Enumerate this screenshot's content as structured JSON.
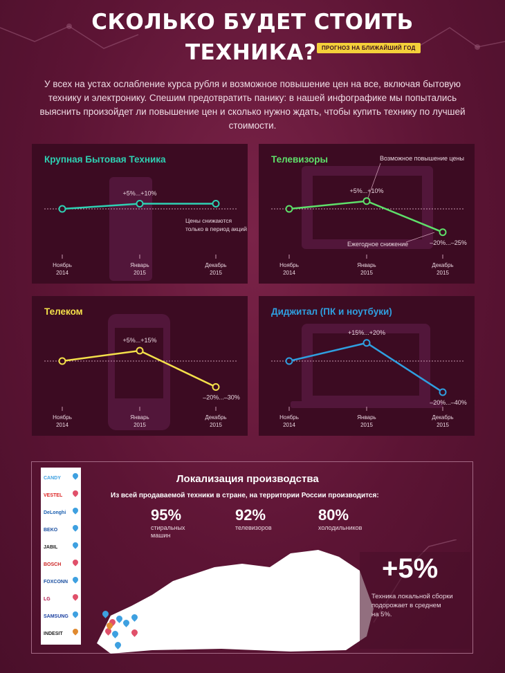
{
  "header": {
    "title_line1": "СКОЛЬКО БУДЕТ СТОИТЬ",
    "title_line2": "ТЕХНИКА?",
    "badge": "ПРОГНОЗ НА БЛИЖАЙШИЙ ГОД",
    "intro": "У всех на устах ослабление курса рубля и возможное повышение цен на все, включая бытовую технику и электронику. Спешим предотвратить панику: в нашей инфографике мы попытались выяснить произойдет ли повышение цен и сколько нужно ждать, чтобы купить технику по лучшей стоимости."
  },
  "chart_data": [
    {
      "type": "line",
      "title": "Крупная Бытовая Техника",
      "color": "#2ed1b3",
      "categories": [
        "Ноябрь 2014",
        "Январь 2015",
        "Декабрь 2015"
      ],
      "values": [
        0,
        5,
        5
      ],
      "labels": [
        "+5%...+10%"
      ],
      "note": "Цены снижаются только в период акций"
    },
    {
      "type": "line",
      "title": "Телевизоры",
      "color": "#5ee06a",
      "categories": [
        "Ноябрь 2014",
        "Январь 2015",
        "Декабрь 2015"
      ],
      "values": [
        0,
        7.5,
        -22.5
      ],
      "labels": [
        "+5%...+10%",
        "–20%...–25%"
      ],
      "annotations": [
        "Возможное повышение цены",
        "Ежегодное снижение"
      ]
    },
    {
      "type": "line",
      "title": "Телеком",
      "color": "#f4e04a",
      "categories": [
        "Ноябрь 2014",
        "Январь 2015",
        "Декабрь 2015"
      ],
      "values": [
        0,
        10,
        -25
      ],
      "labels": [
        "+5%...+15%",
        "–20%...–30%"
      ]
    },
    {
      "type": "line",
      "title": "Диджитал (ПК и ноутбуки)",
      "color": "#2f9fe0",
      "categories": [
        "Ноябрь 2014",
        "Январь 2015",
        "Декабрь 2015"
      ],
      "values": [
        0,
        17.5,
        -30
      ],
      "labels": [
        "+15%...+20%",
        "–20%...–40%"
      ]
    }
  ],
  "axis": {
    "x1a": "Ноябрь",
    "x1b": "2014",
    "x2a": "Январь",
    "x2b": "2015",
    "x3a": "Декабрь",
    "x3b": "2015"
  },
  "localization": {
    "title": "Локализация производства",
    "subtitle": "Из всей продаваемой техники в стране, на территории России производится:",
    "stats": [
      {
        "value": "95%",
        "label_line1": "стиральных",
        "label_line2": "машин"
      },
      {
        "value": "92%",
        "label_line1": "телевизоров",
        "label_line2": ""
      },
      {
        "value": "80%",
        "label_line1": "холодильников",
        "label_line2": ""
      }
    ],
    "big_value": "+5%",
    "big_text_line1": "Техника локальной сборки",
    "big_text_line2": "подорожает в среднем",
    "big_text_line3": "на 5%."
  },
  "brands": [
    {
      "name": "CANDY",
      "color": "#3ea0e0",
      "pin": "#3ea0e0"
    },
    {
      "name": "VESTEL",
      "color": "#d22",
      "pin": "#e0506a"
    },
    {
      "name": "DeLonghi",
      "color": "#1a5fb0",
      "pin": "#3ea0e0"
    },
    {
      "name": "BEKO",
      "color": "#1a4fa0",
      "pin": "#3ea0e0"
    },
    {
      "name": "JABIL",
      "color": "#222",
      "pin": "#3ea0e0"
    },
    {
      "name": "BOSCH",
      "color": "#c22",
      "pin": "#e0506a"
    },
    {
      "name": "FOXCONN",
      "color": "#1a4fa0",
      "pin": "#3ea0e0"
    },
    {
      "name": "LG",
      "color": "#b0154a",
      "pin": "#e0506a"
    },
    {
      "name": "SAMSUNG",
      "color": "#1a3fa0",
      "pin": "#3ea0e0"
    },
    {
      "name": "INDESIT",
      "color": "#222",
      "pin": "#e08a30"
    }
  ]
}
